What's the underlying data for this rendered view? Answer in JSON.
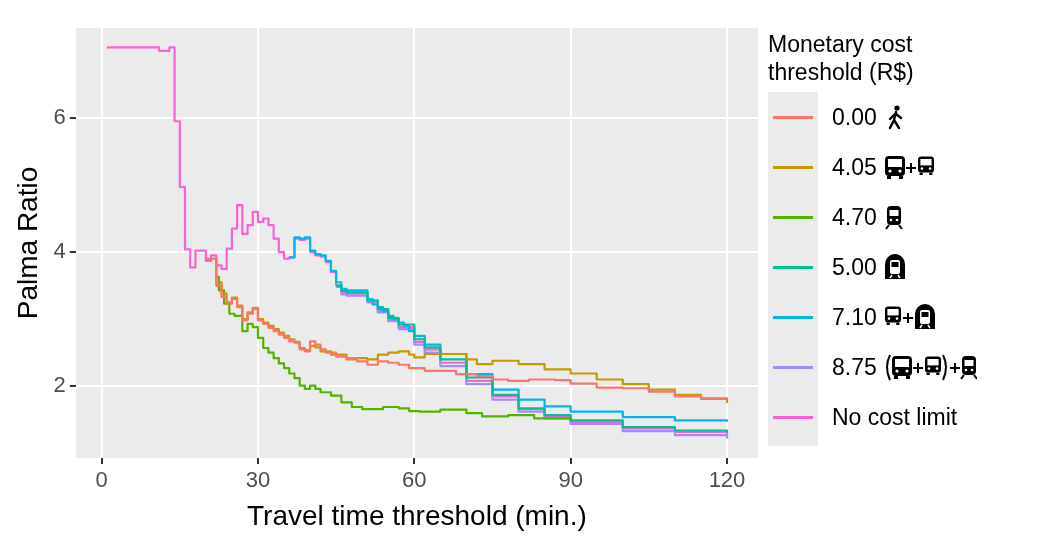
{
  "chart_data": {
    "type": "step",
    "xlabel": "Travel time threshold (min.)",
    "ylabel": "Palma Ratio",
    "legend_title": "Monetary cost threshold (R$)",
    "legend": "right",
    "grid": true,
    "xlim": [
      -4.95,
      125.95
    ],
    "ylim": [
      0.93,
      7.34
    ],
    "xticks": [
      0,
      30,
      60,
      90,
      120
    ],
    "yticks": [
      2,
      4,
      6
    ],
    "series": [
      {
        "name": "0.00",
        "color": "#f8766d",
        "x": [
          20,
          22,
          23,
          24,
          25,
          26,
          27,
          28,
          29,
          30,
          31,
          32,
          33,
          34,
          35,
          36,
          37,
          38,
          39,
          40,
          41,
          42,
          43,
          45,
          47,
          49,
          51,
          53,
          55,
          57,
          59,
          62,
          65,
          68,
          72,
          75,
          78,
          82,
          87,
          90,
          95,
          100,
          105,
          110,
          115,
          120
        ],
        "values": [
          3.9,
          3.5,
          3.33,
          3.23,
          3.3,
          3.18,
          2.98,
          3.08,
          3.15,
          2.98,
          2.93,
          2.87,
          2.82,
          2.77,
          2.72,
          2.67,
          2.65,
          2.55,
          2.52,
          2.67,
          2.62,
          2.55,
          2.5,
          2.44,
          2.42,
          2.37,
          2.32,
          2.37,
          2.35,
          2.32,
          2.27,
          2.23,
          2.23,
          2.18,
          2.15,
          2.1,
          2.08,
          2.1,
          2.09,
          2.04,
          1.98,
          1.97,
          1.92,
          1.85,
          1.82,
          1.81
        ]
      },
      {
        "name": "4.05",
        "color": "#c49a00",
        "x": [
          20,
          22,
          23,
          24,
          25,
          26,
          27,
          28,
          29,
          30,
          31,
          32,
          33,
          34,
          35,
          36,
          37,
          38,
          39,
          40,
          41,
          42,
          44,
          47,
          49,
          51,
          53,
          55,
          57,
          59,
          60,
          62,
          66,
          70,
          72,
          75,
          80,
          85,
          90,
          95,
          100,
          105,
          110,
          115,
          120
        ],
        "values": [
          3.9,
          3.55,
          3.38,
          3.25,
          3.32,
          3.2,
          3.0,
          3.1,
          3.17,
          3.0,
          2.95,
          2.9,
          2.85,
          2.8,
          2.75,
          2.7,
          2.66,
          2.57,
          2.54,
          2.6,
          2.58,
          2.52,
          2.47,
          2.4,
          2.42,
          2.4,
          2.47,
          2.5,
          2.52,
          2.47,
          2.43,
          2.48,
          2.48,
          2.4,
          2.33,
          2.38,
          2.33,
          2.25,
          2.19,
          2.1,
          2.03,
          1.95,
          1.87,
          1.81,
          1.75
        ]
      },
      {
        "name": "4.70",
        "color": "#53b400",
        "x": [
          22,
          22.5,
          23.5,
          24.5,
          25.5,
          27,
          28,
          29,
          30,
          31,
          32,
          33,
          34,
          35,
          36,
          37,
          38,
          39,
          40,
          41,
          42,
          44,
          46,
          48,
          50,
          54,
          57,
          59,
          61,
          65,
          70,
          73,
          78,
          83,
          90
        ],
        "values": [
          3.63,
          3.43,
          3.23,
          3.08,
          3.05,
          2.82,
          2.93,
          2.88,
          2.72,
          2.57,
          2.5,
          2.42,
          2.34,
          2.27,
          2.19,
          2.12,
          2.01,
          1.96,
          2.01,
          1.96,
          1.91,
          1.86,
          1.76,
          1.69,
          1.66,
          1.69,
          1.67,
          1.63,
          1.62,
          1.65,
          1.6,
          1.55,
          1.57,
          1.52,
          1.49
        ]
      },
      {
        "name": "5.00",
        "color": "#00c094",
        "x": [
          45,
          46,
          47,
          51,
          53,
          55,
          57,
          60,
          62,
          65,
          70,
          75,
          80,
          85,
          90,
          100,
          110,
          120
        ],
        "values": [
          3.5,
          3.42,
          3.4,
          3.28,
          3.15,
          3.02,
          2.92,
          2.7,
          2.58,
          2.4,
          2.13,
          1.87,
          1.67,
          1.57,
          1.49,
          1.39,
          1.34,
          1.31
        ]
      },
      {
        "name": "7.10",
        "color": "#00b6eb",
        "x": [
          36,
          37,
          38,
          39,
          40,
          41,
          42,
          43,
          44,
          45,
          46,
          47,
          51,
          52,
          53,
          54,
          55,
          56,
          57,
          58,
          59,
          60,
          62,
          65,
          70,
          75,
          80,
          85,
          90,
          100,
          110,
          120
        ],
        "values": [
          3.92,
          4.22,
          4.2,
          4.22,
          4.02,
          3.97,
          3.95,
          3.87,
          3.72,
          3.55,
          3.45,
          3.43,
          3.3,
          3.22,
          3.18,
          3.12,
          3.05,
          3.0,
          2.95,
          2.9,
          2.82,
          2.75,
          2.62,
          2.48,
          2.18,
          1.95,
          1.8,
          1.7,
          1.62,
          1.54,
          1.49,
          1.47
        ]
      },
      {
        "name": "8.75",
        "color": "#a58aff",
        "x": [
          45,
          46,
          47,
          51,
          53,
          55,
          57,
          60,
          62,
          65,
          70,
          75,
          80,
          85,
          90,
          100,
          110,
          120
        ],
        "values": [
          3.48,
          3.37,
          3.35,
          3.25,
          3.1,
          2.97,
          2.85,
          2.62,
          2.5,
          2.3,
          2.03,
          1.8,
          1.62,
          1.52,
          1.44,
          1.33,
          1.27,
          1.22
        ]
      },
      {
        "name": "No cost limit",
        "color": "#fb61d7",
        "x": [
          1,
          11,
          13,
          14,
          15,
          16,
          17,
          18,
          20,
          21,
          22,
          23,
          24,
          25,
          26,
          27,
          28,
          29,
          30,
          31,
          32,
          33,
          34,
          35,
          36,
          37,
          38,
          39,
          40,
          41,
          42,
          43,
          44,
          45,
          46,
          47,
          51,
          53,
          55,
          57,
          60,
          62,
          65,
          70,
          75,
          80,
          85,
          90,
          100,
          110,
          120
        ],
        "values": [
          7.05,
          7.0,
          7.05,
          5.95,
          4.97,
          4.04,
          3.77,
          4.02,
          3.87,
          3.95,
          3.8,
          3.75,
          4.05,
          4.35,
          4.7,
          4.27,
          4.4,
          4.6,
          4.45,
          4.5,
          4.4,
          4.2,
          4.0,
          3.9,
          3.92,
          4.2,
          4.18,
          4.2,
          4.0,
          3.95,
          3.93,
          3.85,
          3.7,
          3.5,
          3.4,
          3.38,
          3.27,
          3.12,
          3.0,
          2.88,
          2.66,
          2.55,
          2.35,
          2.08,
          1.85,
          1.66,
          1.55,
          1.47,
          1.37,
          1.32,
          1.28
        ]
      }
    ]
  }
}
